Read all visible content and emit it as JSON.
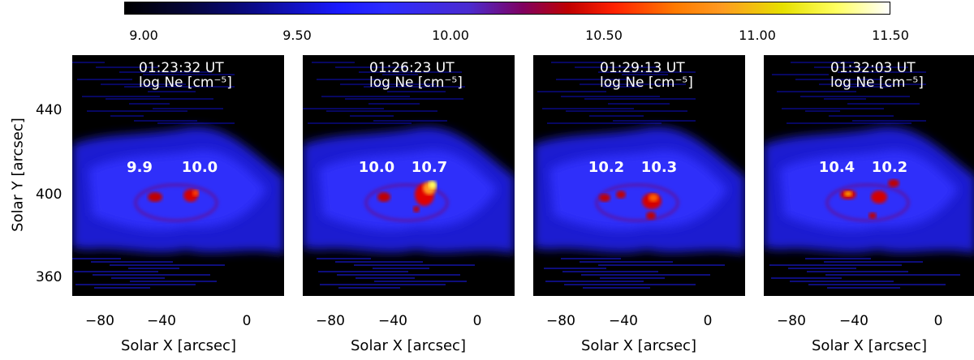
{
  "colorbar": {
    "ticks": [
      "9.00",
      "9.50",
      "10.00",
      "10.50",
      "11.00",
      "11.50"
    ],
    "range": [
      9.0,
      11.5
    ]
  },
  "axes": {
    "xlabel": "Solar X [arcsec]",
    "ylabel": "Solar Y [arcsec]",
    "xticks": [
      "−80",
      "−40",
      "0"
    ],
    "yticks": [
      "440",
      "400",
      "360"
    ]
  },
  "panels": [
    {
      "time": "01:23:32 UT",
      "quantity": "log Ne [cm⁻⁵]",
      "value_left": "9.9",
      "value_right": "10.0"
    },
    {
      "time": "01:26:23 UT",
      "quantity": "log Ne [cm⁻⁵]",
      "value_left": "10.0",
      "value_right": "10.7"
    },
    {
      "time": "01:29:13 UT",
      "quantity": "log Ne [cm⁻⁵]",
      "value_left": "10.2",
      "value_right": "10.3"
    },
    {
      "time": "01:32:03 UT",
      "quantity": "log Ne [cm⁻⁵]",
      "value_left": "10.4",
      "value_right": "10.2"
    }
  ]
}
